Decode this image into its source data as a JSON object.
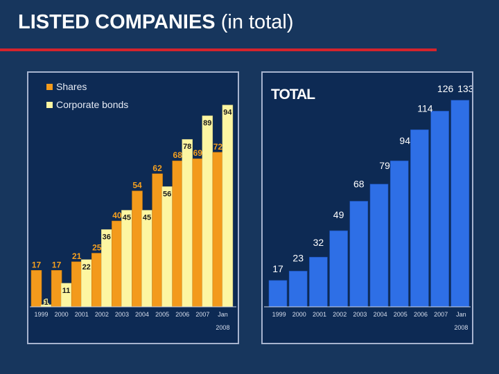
{
  "slide": {
    "title_bold": "LISTED COMPANIES",
    "title_rest": "(in total)"
  },
  "colors": {
    "background": "#17365d",
    "rule": "#d4242c",
    "shares": "#f39a1c",
    "bonds": "#fdf6a2",
    "shares_label": "#f6a01f",
    "total_bar": "#2e6fe6",
    "total_label": "#ffffff"
  },
  "chart_data": [
    {
      "type": "bar",
      "title": "",
      "categories": [
        "1999",
        "2000",
        "2001",
        "2002",
        "2003",
        "2004",
        "2005",
        "2006",
        "2007",
        "Jan 2008"
      ],
      "series": [
        {
          "name": "Shares",
          "values": [
            17,
            17,
            21,
            25,
            40,
            54,
            62,
            68,
            69,
            72
          ]
        },
        {
          "name": "Corporate bonds",
          "values": [
            1,
            11,
            22,
            36,
            45,
            45,
            56,
            78,
            89,
            94
          ]
        }
      ],
      "legend": "top-left",
      "ylim": [
        0,
        100
      ],
      "grid": false
    },
    {
      "type": "bar",
      "title": "TOTAL",
      "categories": [
        "1999",
        "2000",
        "2001",
        "2002",
        "2003",
        "2004",
        "2005",
        "2006",
        "2007",
        "Jan 2008"
      ],
      "series": [
        {
          "values": [
            17,
            23,
            32,
            49,
            68,
            79,
            94,
            114,
            126,
            133
          ]
        }
      ],
      "ylim": [
        0,
        140
      ],
      "grid": false
    }
  ]
}
